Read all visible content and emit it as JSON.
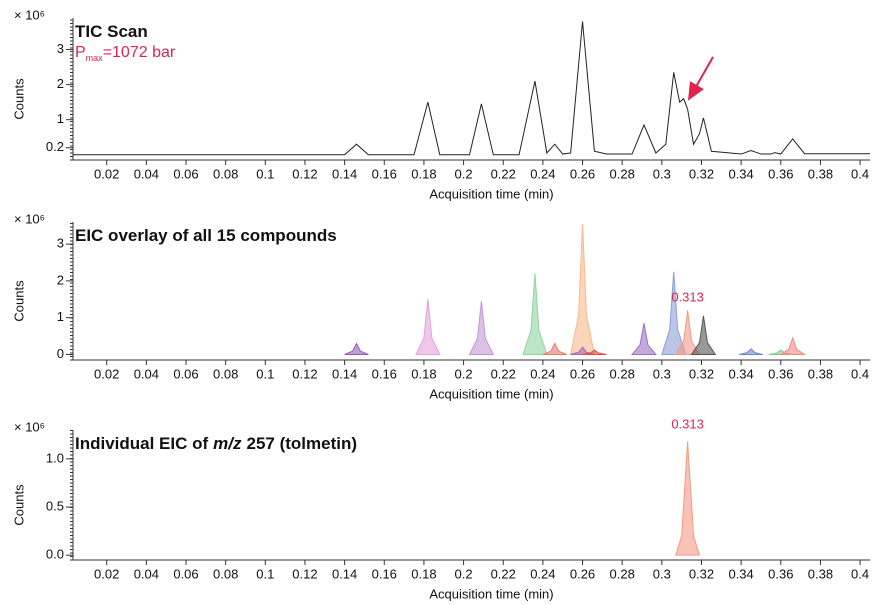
{
  "chart_data": [
    {
      "type": "line",
      "title": "TIC Scan",
      "y_multiplier": "× 10⁶",
      "ylabel": "Counts",
      "xlabel": "Acquisition time (min)",
      "pressure_label": {
        "symbol": "P",
        "subscript": "max",
        "text": "=1072 bar"
      },
      "xlim": [
        0.003,
        0.405
      ],
      "xticks": [
        0.02,
        0.04,
        0.06,
        0.08,
        0.1,
        0.12,
        0.14,
        0.16,
        0.18,
        0.2,
        0.22,
        0.24,
        0.26,
        0.28,
        0.3,
        0.32,
        0.34,
        0.36,
        0.38,
        0.4
      ],
      "ylim": [
        -0.15,
        3.9
      ],
      "yticks": [
        0.2,
        1,
        2,
        3
      ],
      "series": [
        {
          "color": "#222222",
          "x": [
            0.003,
            0.14,
            0.146,
            0.152,
            0.175,
            0.182,
            0.188,
            0.203,
            0.209,
            0.215,
            0.228,
            0.236,
            0.242,
            0.246,
            0.25,
            0.254,
            0.26,
            0.266,
            0.272,
            0.285,
            0.291,
            0.297,
            0.302,
            0.306,
            0.309,
            0.311,
            0.313,
            0.316,
            0.319,
            0.321,
            0.325,
            0.34,
            0.345,
            0.35,
            0.355,
            0.357,
            0.36,
            0.366,
            0.372,
            0.405
          ],
          "values": [
            0,
            0,
            0.3,
            0,
            0,
            1.5,
            0,
            0,
            1.45,
            0,
            0,
            2.1,
            0.05,
            0.3,
            0.02,
            0.05,
            3.8,
            0.1,
            0.02,
            0.02,
            0.85,
            0.05,
            0.3,
            2.35,
            1.5,
            1.6,
            1.3,
            0.3,
            0.6,
            1.05,
            0.1,
            0.02,
            0.12,
            0.02,
            0.02,
            0.06,
            0.02,
            0.45,
            0.03,
            0.03
          ]
        }
      ]
    },
    {
      "type": "area",
      "title": "EIC overlay of all 15 compounds",
      "y_multiplier": "× 10⁶",
      "ylabel": "Counts",
      "xlabel": "Acquisition time (min)",
      "peak_label": 0.313,
      "xlim": [
        0.003,
        0.405
      ],
      "xticks": [
        0.02,
        0.04,
        0.06,
        0.08,
        0.1,
        0.12,
        0.14,
        0.16,
        0.18,
        0.2,
        0.22,
        0.24,
        0.26,
        0.28,
        0.3,
        0.32,
        0.34,
        0.36,
        0.38,
        0.4
      ],
      "ylim": [
        -0.15,
        3.6
      ],
      "yticks": [
        0,
        1,
        2,
        3
      ],
      "series": [
        {
          "color": "#9b59b6",
          "x": [
            0.14,
            0.144,
            0.146,
            0.148,
            0.152
          ],
          "values": [
            0,
            0.09,
            0.3,
            0.09,
            0
          ]
        },
        {
          "color": "#e3a1dc",
          "x": [
            0.176,
            0.18,
            0.182,
            0.184,
            0.188
          ],
          "values": [
            0,
            0.45,
            1.5,
            0.45,
            0
          ]
        },
        {
          "color": "#c495d4",
          "x": [
            0.203,
            0.207,
            0.209,
            0.211,
            0.215
          ],
          "values": [
            0,
            0.44,
            1.45,
            0.44,
            0
          ]
        },
        {
          "color": "#90d4a0",
          "x": [
            0.23,
            0.234,
            0.236,
            0.238,
            0.242
          ],
          "values": [
            0,
            0.66,
            2.2,
            0.66,
            0
          ]
        },
        {
          "color": "#e57a6a",
          "x": [
            0.24,
            0.244,
            0.246,
            0.248,
            0.252
          ],
          "values": [
            0,
            0.09,
            0.3,
            0.09,
            0
          ]
        },
        {
          "color": "#f7b98a",
          "x": [
            0.254,
            0.258,
            0.26,
            0.262,
            0.266
          ],
          "values": [
            0,
            1.07,
            3.55,
            1.07,
            0
          ]
        },
        {
          "color": "#a569bd",
          "x": [
            0.254,
            0.258,
            0.26,
            0.262,
            0.266
          ],
          "values": [
            0,
            0.06,
            0.2,
            0.06,
            0
          ]
        },
        {
          "color": "#e74c3c",
          "x": [
            0.26,
            0.264,
            0.266,
            0.268,
            0.272
          ],
          "values": [
            0,
            0.04,
            0.12,
            0.04,
            0
          ]
        },
        {
          "color": "#9b6fc4",
          "x": [
            0.285,
            0.289,
            0.291,
            0.293,
            0.297
          ],
          "values": [
            0,
            0.26,
            0.85,
            0.26,
            0
          ]
        },
        {
          "color": "#8e9fd6",
          "x": [
            0.3,
            0.304,
            0.306,
            0.308,
            0.312
          ],
          "values": [
            0,
            0.68,
            2.25,
            0.68,
            0
          ]
        },
        {
          "color": "#f39a85",
          "x": [
            0.307,
            0.311,
            0.313,
            0.315,
            0.319
          ],
          "values": [
            0,
            0.36,
            1.2,
            0.36,
            0
          ]
        },
        {
          "color": "#555555",
          "x": [
            0.315,
            0.319,
            0.321,
            0.323,
            0.327
          ],
          "values": [
            0,
            0.32,
            1.05,
            0.32,
            0
          ]
        },
        {
          "color": "#6f86d0",
          "x": [
            0.339,
            0.343,
            0.345,
            0.347,
            0.351
          ],
          "values": [
            0,
            0.05,
            0.15,
            0.05,
            0
          ]
        },
        {
          "color": "#7fcf8f",
          "x": [
            0.354,
            0.358,
            0.36,
            0.362,
            0.366
          ],
          "values": [
            0,
            0.04,
            0.12,
            0.04,
            0
          ]
        },
        {
          "color": "#f08a80",
          "x": [
            0.36,
            0.364,
            0.366,
            0.368,
            0.372
          ],
          "values": [
            0,
            0.14,
            0.45,
            0.14,
            0
          ]
        }
      ]
    },
    {
      "type": "area",
      "title": "Individual EIC of",
      "title_italic": "m/z",
      "title_rest": "257 (tolmetin)",
      "y_multiplier": "× 10⁶",
      "ylabel": "Counts",
      "xlabel": "Acquisition time (min)",
      "peak_label": 0.313,
      "xlim": [
        0.003,
        0.405
      ],
      "xticks": [
        0.02,
        0.04,
        0.06,
        0.08,
        0.1,
        0.12,
        0.14,
        0.16,
        0.18,
        0.2,
        0.22,
        0.24,
        0.26,
        0.28,
        0.3,
        0.32,
        0.34,
        0.36,
        0.38,
        0.4
      ],
      "ylim": [
        -0.05,
        1.3
      ],
      "yticks": [
        {
          "value": 0,
          "label": "0.0"
        },
        {
          "value": 0.5,
          "label": "0.5"
        },
        {
          "value": 1,
          "label": "1.0"
        }
      ],
      "series": [
        {
          "color": "#f39a85",
          "x": [
            0.307,
            0.31,
            0.313,
            0.316,
            0.319
          ],
          "values": [
            0,
            0.2,
            1.18,
            0.2,
            0
          ]
        }
      ]
    }
  ]
}
